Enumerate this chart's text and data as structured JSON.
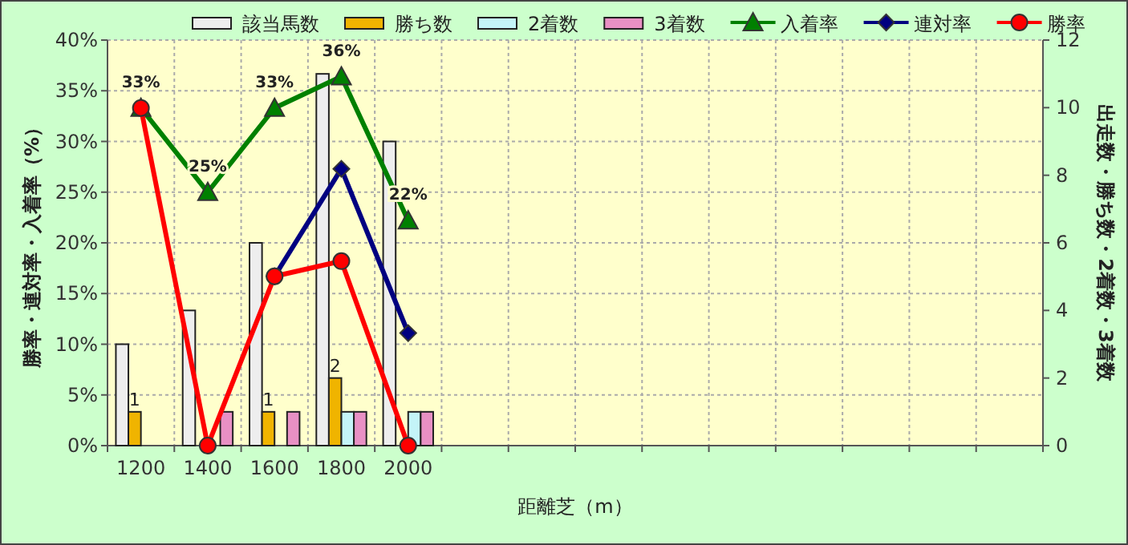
{
  "chart_data": {
    "type": "bar",
    "xlabel": "距離芝（m）",
    "ylabel": "勝率・連対率・入着率（%）",
    "y2label": "出走数・勝ち数・2着数・3着数",
    "categories": [
      "1200",
      "1400",
      "1600",
      "1800",
      "2000",
      null,
      null,
      null,
      null,
      null,
      null,
      null,
      null,
      null
    ],
    "series": [
      {
        "name": "該当馬数",
        "type": "bar",
        "axis": "y2",
        "color": "#eeeeee",
        "values": [
          3,
          4,
          6,
          11,
          9,
          null,
          null,
          null,
          null,
          null,
          null,
          null,
          null,
          null
        ]
      },
      {
        "name": "勝ち数",
        "type": "bar",
        "axis": "y2",
        "color": "#f0b400",
        "values": [
          1,
          0,
          1,
          2,
          0,
          null,
          null,
          null,
          null,
          null,
          null,
          null,
          null,
          null
        ],
        "value_labels": [
          "1",
          null,
          "1",
          "2",
          null,
          null,
          null,
          null,
          null,
          null,
          null,
          null,
          null,
          null
        ]
      },
      {
        "name": "2着数",
        "type": "bar",
        "axis": "y2",
        "color": "#c4f4f8",
        "values": [
          0,
          0,
          0,
          1,
          1,
          null,
          null,
          null,
          null,
          null,
          null,
          null,
          null,
          null
        ]
      },
      {
        "name": "3着数",
        "type": "bar",
        "axis": "y2",
        "color": "#e890c4",
        "values": [
          0,
          1,
          1,
          1,
          1,
          null,
          null,
          null,
          null,
          null,
          null,
          null,
          null,
          null
        ]
      },
      {
        "name": "入着率",
        "type": "line",
        "marker": "triangle",
        "color": "#008000",
        "values": [
          33.3,
          25,
          33.3,
          36.4,
          22.2,
          null,
          null,
          null,
          null,
          null,
          null,
          null,
          null,
          null
        ],
        "value_labels": [
          "33%",
          "25%",
          "33%",
          "36%",
          "22%",
          null,
          null,
          null,
          null,
          null,
          null,
          null,
          null,
          null
        ]
      },
      {
        "name": "連対率",
        "type": "line",
        "marker": "diamond",
        "color": "#000080",
        "values": [
          null,
          null,
          16.7,
          27.3,
          11.1,
          null,
          null,
          null,
          null,
          null,
          null,
          null,
          null,
          null
        ]
      },
      {
        "name": "勝率",
        "type": "line",
        "marker": "circle",
        "color": "#ff0000",
        "values": [
          33.3,
          0,
          16.7,
          18.2,
          0,
          null,
          null,
          null,
          null,
          null,
          null,
          null,
          null,
          null
        ]
      }
    ],
    "ylim": [
      0,
      40
    ],
    "yticks": [
      {
        "value": 0,
        "label": "0%"
      },
      {
        "value": 5,
        "label": "5%"
      },
      {
        "value": 10,
        "label": "10%"
      },
      {
        "value": 15,
        "label": "15%"
      },
      {
        "value": 20,
        "label": "20%"
      },
      {
        "value": 25,
        "label": "25%"
      },
      {
        "value": 30,
        "label": "30%"
      },
      {
        "value": 35,
        "label": "35%"
      },
      {
        "value": 40,
        "label": "40%"
      }
    ],
    "y2lim": [
      0,
      12
    ],
    "y2ticks": [
      0,
      2,
      4,
      6,
      8,
      10,
      12
    ],
    "grid": true,
    "legend": "top"
  }
}
